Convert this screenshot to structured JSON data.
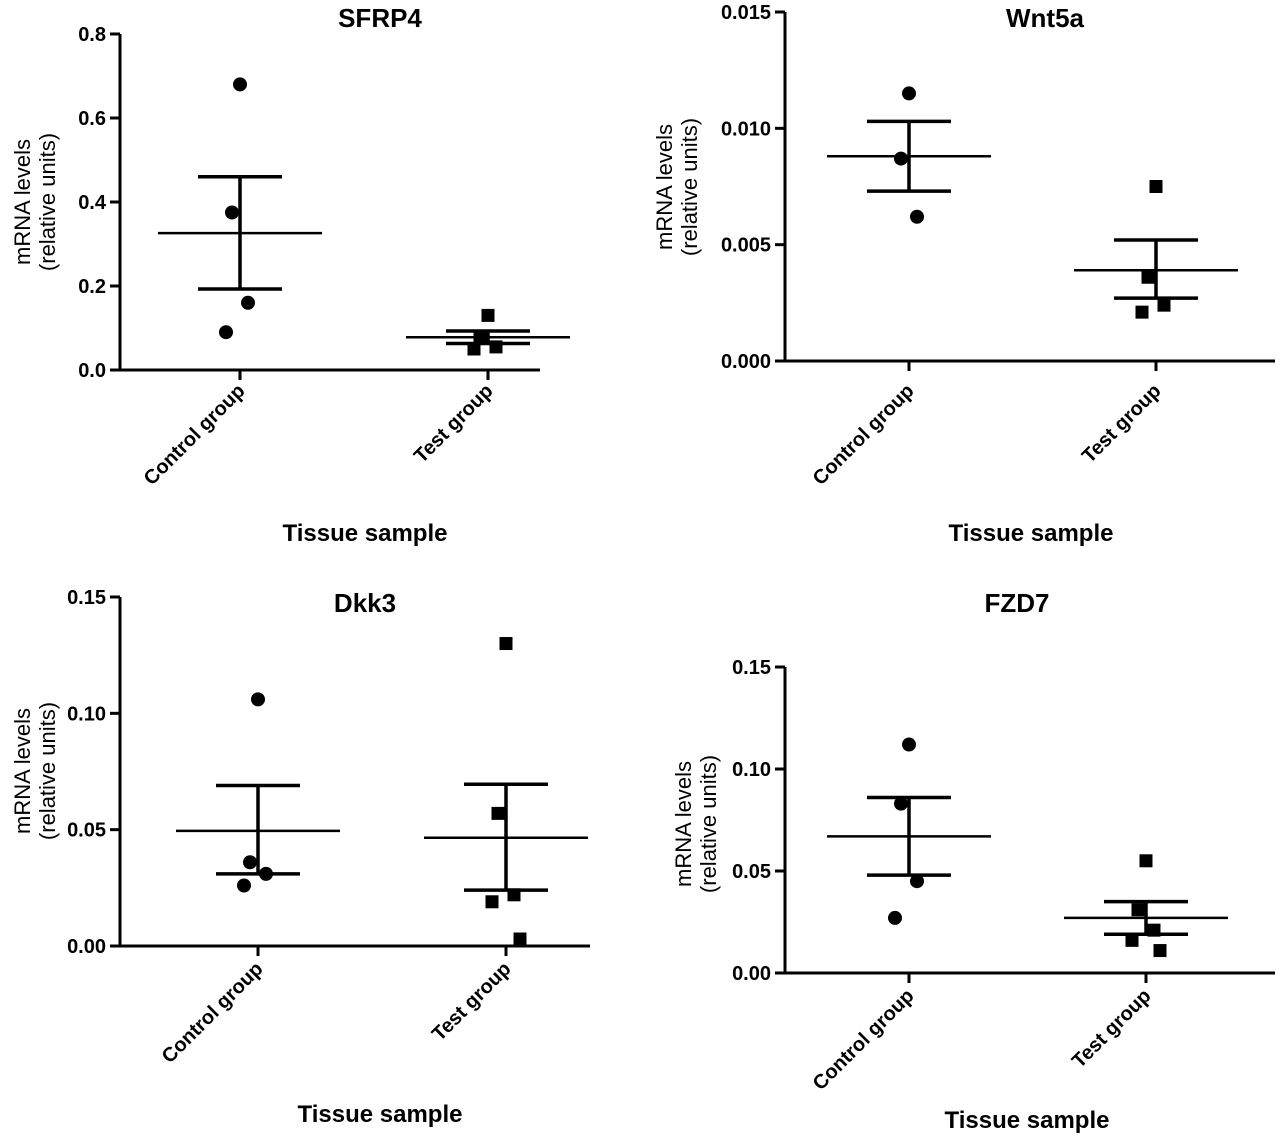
{
  "chart_data": [
    {
      "type": "scatter",
      "title": "SFRP4",
      "ylabel": "mRNA levels\n(relative units)",
      "xlabel": "Tissue sample",
      "categories": [
        "Control group",
        "Test group"
      ],
      "ylim": [
        0,
        0.8
      ],
      "yticks": [
        "0.0",
        "0.2",
        "0.4",
        "0.6",
        "0.8"
      ],
      "series": [
        {
          "marker": "circle",
          "points": [
            0.68,
            0.375,
            0.16,
            0.09
          ],
          "mean": 0.326,
          "sem_upper": 0.46,
          "sem_lower": 0.193
        },
        {
          "marker": "square",
          "points": [
            0.13,
            0.08,
            0.055,
            0.05
          ],
          "mean": 0.078,
          "sem_upper": 0.093,
          "sem_lower": 0.063
        }
      ]
    },
    {
      "type": "scatter",
      "title": "Wnt5a",
      "ylabel": "mRNA levels\n(relative units)",
      "xlabel": "Tissue sample",
      "categories": [
        "Control group",
        "Test group"
      ],
      "ylim": [
        0,
        0.015
      ],
      "yticks": [
        "0.000",
        "0.005",
        "0.010",
        "0.015"
      ],
      "series": [
        {
          "marker": "circle",
          "points": [
            0.0115,
            0.0087,
            0.0062
          ],
          "mean": 0.0088,
          "sem_upper": 0.0103,
          "sem_lower": 0.0073
        },
        {
          "marker": "square",
          "points": [
            0.0075,
            0.0036,
            0.0024,
            0.0021
          ],
          "mean": 0.0039,
          "sem_upper": 0.0052,
          "sem_lower": 0.0027
        }
      ]
    },
    {
      "type": "scatter",
      "title": "Dkk3",
      "ylabel": "mRNA levels\n(relative units)",
      "xlabel": "Tissue sample",
      "categories": [
        "Control group",
        "Test group"
      ],
      "ylim": [
        0,
        0.15
      ],
      "yticks": [
        "0.00",
        "0.05",
        "0.10",
        "0.15"
      ],
      "series": [
        {
          "marker": "circle",
          "points": [
            0.106,
            0.036,
            0.031,
            0.026
          ],
          "mean": 0.0495,
          "sem_upper": 0.069,
          "sem_lower": 0.031
        },
        {
          "marker": "square",
          "points": [
            0.13,
            0.057,
            0.022,
            0.019,
            0.003
          ],
          "mean": 0.0465,
          "sem_upper": 0.0695,
          "sem_lower": 0.024
        }
      ]
    },
    {
      "type": "scatter",
      "title": "FZD7",
      "ylabel": "mRNA levels\n(relative units)",
      "xlabel": "Tissue sample",
      "categories": [
        "Control group",
        "Test group"
      ],
      "ylim": [
        0,
        0.15
      ],
      "yticks": [
        "0.00",
        "0.05",
        "0.10",
        "0.15"
      ],
      "series": [
        {
          "marker": "circle",
          "points": [
            0.112,
            0.083,
            0.045,
            0.027
          ],
          "mean": 0.067,
          "sem_upper": 0.086,
          "sem_lower": 0.048
        },
        {
          "marker": "square",
          "points": [
            0.055,
            0.031,
            0.021,
            0.016,
            0.011
          ],
          "mean": 0.027,
          "sem_upper": 0.035,
          "sem_lower": 0.019
        }
      ]
    }
  ]
}
